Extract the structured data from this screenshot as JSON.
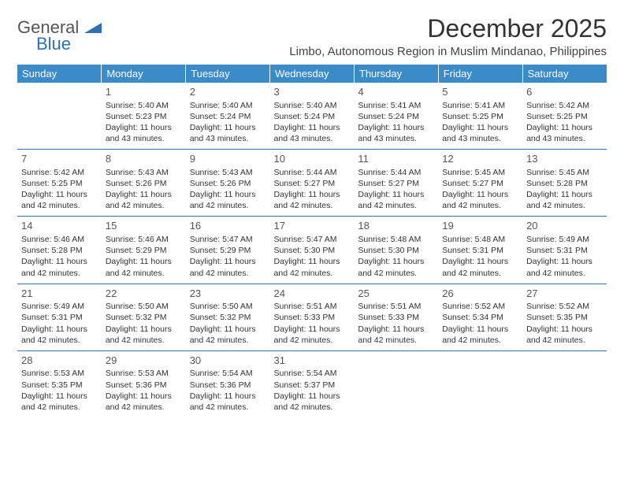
{
  "logo": {
    "general": "General",
    "blue": "Blue"
  },
  "header": {
    "month_title": "December 2025",
    "location": "Limbo, Autonomous Region in Muslim Mindanao, Philippines"
  },
  "colors": {
    "header_bg": "#3b8bc9",
    "header_text": "#ffffff",
    "separator": "#2f6fb3",
    "text": "#333333",
    "logo_gray": "#555555",
    "logo_blue": "#2f6fb3",
    "background": "#ffffff"
  },
  "typography": {
    "month_title_size": 32,
    "location_size": 15,
    "day_header_size": 13,
    "cell_text_size": 10.5,
    "day_num_size": 13,
    "logo_size": 22
  },
  "day_headers": [
    "Sunday",
    "Monday",
    "Tuesday",
    "Wednesday",
    "Thursday",
    "Friday",
    "Saturday"
  ],
  "weeks": [
    [
      null,
      {
        "day": "1",
        "sunrise": "Sunrise: 5:40 AM",
        "sunset": "Sunset: 5:23 PM",
        "daylight1": "Daylight: 11 hours",
        "daylight2": "and 43 minutes."
      },
      {
        "day": "2",
        "sunrise": "Sunrise: 5:40 AM",
        "sunset": "Sunset: 5:24 PM",
        "daylight1": "Daylight: 11 hours",
        "daylight2": "and 43 minutes."
      },
      {
        "day": "3",
        "sunrise": "Sunrise: 5:40 AM",
        "sunset": "Sunset: 5:24 PM",
        "daylight1": "Daylight: 11 hours",
        "daylight2": "and 43 minutes."
      },
      {
        "day": "4",
        "sunrise": "Sunrise: 5:41 AM",
        "sunset": "Sunset: 5:24 PM",
        "daylight1": "Daylight: 11 hours",
        "daylight2": "and 43 minutes."
      },
      {
        "day": "5",
        "sunrise": "Sunrise: 5:41 AM",
        "sunset": "Sunset: 5:25 PM",
        "daylight1": "Daylight: 11 hours",
        "daylight2": "and 43 minutes."
      },
      {
        "day": "6",
        "sunrise": "Sunrise: 5:42 AM",
        "sunset": "Sunset: 5:25 PM",
        "daylight1": "Daylight: 11 hours",
        "daylight2": "and 43 minutes."
      }
    ],
    [
      {
        "day": "7",
        "sunrise": "Sunrise: 5:42 AM",
        "sunset": "Sunset: 5:25 PM",
        "daylight1": "Daylight: 11 hours",
        "daylight2": "and 42 minutes."
      },
      {
        "day": "8",
        "sunrise": "Sunrise: 5:43 AM",
        "sunset": "Sunset: 5:26 PM",
        "daylight1": "Daylight: 11 hours",
        "daylight2": "and 42 minutes."
      },
      {
        "day": "9",
        "sunrise": "Sunrise: 5:43 AM",
        "sunset": "Sunset: 5:26 PM",
        "daylight1": "Daylight: 11 hours",
        "daylight2": "and 42 minutes."
      },
      {
        "day": "10",
        "sunrise": "Sunrise: 5:44 AM",
        "sunset": "Sunset: 5:27 PM",
        "daylight1": "Daylight: 11 hours",
        "daylight2": "and 42 minutes."
      },
      {
        "day": "11",
        "sunrise": "Sunrise: 5:44 AM",
        "sunset": "Sunset: 5:27 PM",
        "daylight1": "Daylight: 11 hours",
        "daylight2": "and 42 minutes."
      },
      {
        "day": "12",
        "sunrise": "Sunrise: 5:45 AM",
        "sunset": "Sunset: 5:27 PM",
        "daylight1": "Daylight: 11 hours",
        "daylight2": "and 42 minutes."
      },
      {
        "day": "13",
        "sunrise": "Sunrise: 5:45 AM",
        "sunset": "Sunset: 5:28 PM",
        "daylight1": "Daylight: 11 hours",
        "daylight2": "and 42 minutes."
      }
    ],
    [
      {
        "day": "14",
        "sunrise": "Sunrise: 5:46 AM",
        "sunset": "Sunset: 5:28 PM",
        "daylight1": "Daylight: 11 hours",
        "daylight2": "and 42 minutes."
      },
      {
        "day": "15",
        "sunrise": "Sunrise: 5:46 AM",
        "sunset": "Sunset: 5:29 PM",
        "daylight1": "Daylight: 11 hours",
        "daylight2": "and 42 minutes."
      },
      {
        "day": "16",
        "sunrise": "Sunrise: 5:47 AM",
        "sunset": "Sunset: 5:29 PM",
        "daylight1": "Daylight: 11 hours",
        "daylight2": "and 42 minutes."
      },
      {
        "day": "17",
        "sunrise": "Sunrise: 5:47 AM",
        "sunset": "Sunset: 5:30 PM",
        "daylight1": "Daylight: 11 hours",
        "daylight2": "and 42 minutes."
      },
      {
        "day": "18",
        "sunrise": "Sunrise: 5:48 AM",
        "sunset": "Sunset: 5:30 PM",
        "daylight1": "Daylight: 11 hours",
        "daylight2": "and 42 minutes."
      },
      {
        "day": "19",
        "sunrise": "Sunrise: 5:48 AM",
        "sunset": "Sunset: 5:31 PM",
        "daylight1": "Daylight: 11 hours",
        "daylight2": "and 42 minutes."
      },
      {
        "day": "20",
        "sunrise": "Sunrise: 5:49 AM",
        "sunset": "Sunset: 5:31 PM",
        "daylight1": "Daylight: 11 hours",
        "daylight2": "and 42 minutes."
      }
    ],
    [
      {
        "day": "21",
        "sunrise": "Sunrise: 5:49 AM",
        "sunset": "Sunset: 5:31 PM",
        "daylight1": "Daylight: 11 hours",
        "daylight2": "and 42 minutes."
      },
      {
        "day": "22",
        "sunrise": "Sunrise: 5:50 AM",
        "sunset": "Sunset: 5:32 PM",
        "daylight1": "Daylight: 11 hours",
        "daylight2": "and 42 minutes."
      },
      {
        "day": "23",
        "sunrise": "Sunrise: 5:50 AM",
        "sunset": "Sunset: 5:32 PM",
        "daylight1": "Daylight: 11 hours",
        "daylight2": "and 42 minutes."
      },
      {
        "day": "24",
        "sunrise": "Sunrise: 5:51 AM",
        "sunset": "Sunset: 5:33 PM",
        "daylight1": "Daylight: 11 hours",
        "daylight2": "and 42 minutes."
      },
      {
        "day": "25",
        "sunrise": "Sunrise: 5:51 AM",
        "sunset": "Sunset: 5:33 PM",
        "daylight1": "Daylight: 11 hours",
        "daylight2": "and 42 minutes."
      },
      {
        "day": "26",
        "sunrise": "Sunrise: 5:52 AM",
        "sunset": "Sunset: 5:34 PM",
        "daylight1": "Daylight: 11 hours",
        "daylight2": "and 42 minutes."
      },
      {
        "day": "27",
        "sunrise": "Sunrise: 5:52 AM",
        "sunset": "Sunset: 5:35 PM",
        "daylight1": "Daylight: 11 hours",
        "daylight2": "and 42 minutes."
      }
    ],
    [
      {
        "day": "28",
        "sunrise": "Sunrise: 5:53 AM",
        "sunset": "Sunset: 5:35 PM",
        "daylight1": "Daylight: 11 hours",
        "daylight2": "and 42 minutes."
      },
      {
        "day": "29",
        "sunrise": "Sunrise: 5:53 AM",
        "sunset": "Sunset: 5:36 PM",
        "daylight1": "Daylight: 11 hours",
        "daylight2": "and 42 minutes."
      },
      {
        "day": "30",
        "sunrise": "Sunrise: 5:54 AM",
        "sunset": "Sunset: 5:36 PM",
        "daylight1": "Daylight: 11 hours",
        "daylight2": "and 42 minutes."
      },
      {
        "day": "31",
        "sunrise": "Sunrise: 5:54 AM",
        "sunset": "Sunset: 5:37 PM",
        "daylight1": "Daylight: 11 hours",
        "daylight2": "and 42 minutes."
      },
      null,
      null,
      null
    ]
  ]
}
